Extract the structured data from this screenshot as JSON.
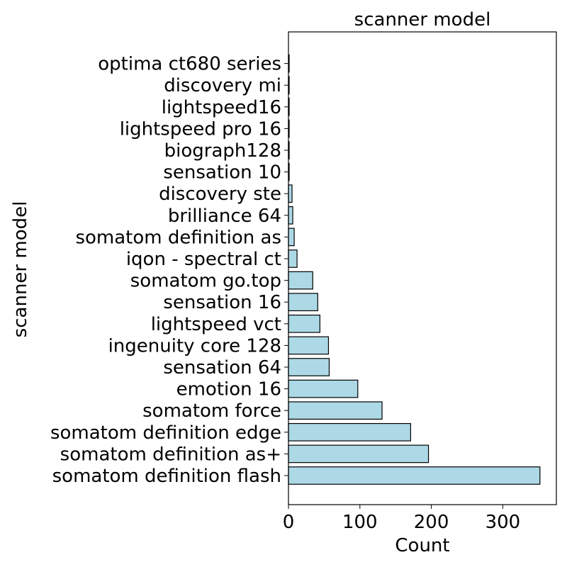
{
  "chart_data": {
    "type": "bar",
    "orientation": "horizontal",
    "title": "scanner model",
    "xlabel": "Count",
    "ylabel": "scanner model",
    "xlim": [
      0,
      375
    ],
    "xticks": [
      0,
      100,
      200,
      300
    ],
    "grid": false,
    "bar_color": "#add8e6",
    "bar_edge_color": "#000000",
    "categories": [
      "somatom definition flash",
      "somatom definition as+",
      "somatom definition edge",
      "somatom force",
      "emotion 16",
      "sensation 64",
      "ingenuity core 128",
      "lightspeed vct",
      "sensation 16",
      "somatom go.top",
      "iqon - spectral ct",
      "somatom definition as",
      "brilliance 64",
      "discovery ste",
      "sensation 10",
      "biograph128",
      "lightspeed pro 16",
      "lightspeed16",
      "discovery mi",
      "optima ct680 series"
    ],
    "values": [
      352,
      196,
      171,
      131,
      97,
      57,
      56,
      44,
      41,
      34,
      12,
      8,
      6,
      5,
      1,
      1,
      1,
      1,
      1,
      1
    ]
  }
}
